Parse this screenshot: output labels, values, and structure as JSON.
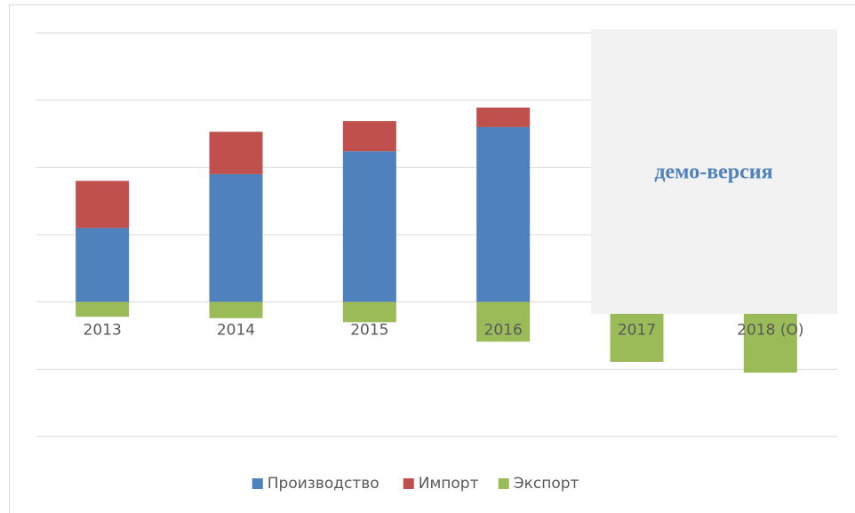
{
  "chart_data": {
    "type": "bar",
    "stacked": true,
    "categories": [
      "2013",
      "2014",
      "2015",
      "2016",
      "2017",
      "2018 (О)"
    ],
    "series": [
      {
        "name": "Производство",
        "color": "#4f81bd",
        "values": [
          1.1,
          1.9,
          2.24,
          2.6,
          null,
          null
        ]
      },
      {
        "name": "Импорт",
        "color": "#c0504d",
        "values": [
          0.7,
          0.63,
          0.45,
          0.29,
          null,
          null
        ]
      },
      {
        "name": "Экспорт",
        "color": "#9bbb59",
        "values": [
          -0.22,
          -0.24,
          -0.3,
          -0.59,
          -0.89,
          -1.05
        ]
      }
    ],
    "ylim": [
      -2,
      4
    ],
    "yticks": [
      -2,
      -1,
      0,
      1,
      2,
      3,
      4
    ],
    "grid": true,
    "legend": "bottom",
    "watermark": "демо-версия"
  }
}
